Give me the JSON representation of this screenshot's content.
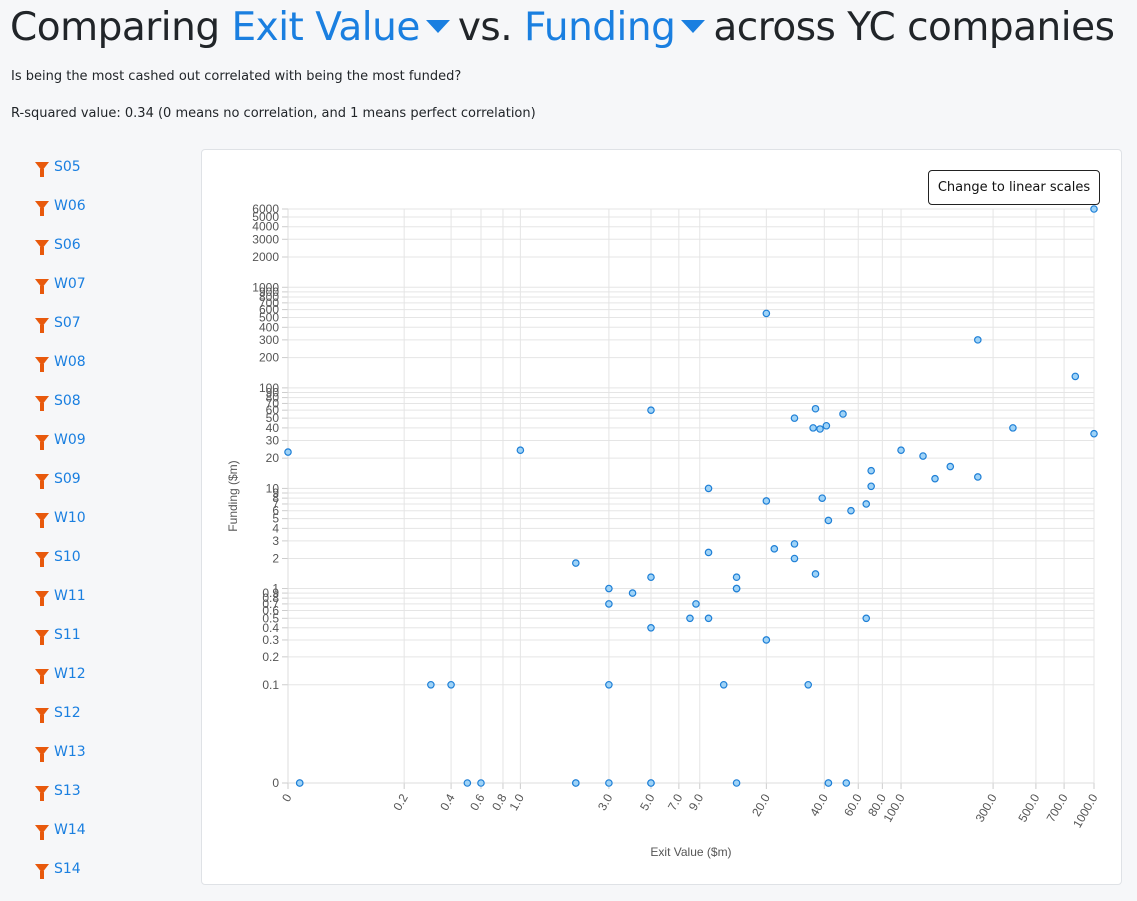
{
  "header": {
    "prefix": "Comparing",
    "metric_x": "Exit Value",
    "middle": "vs.",
    "metric_y": "Funding",
    "suffix": "across YC companies",
    "question": "Is being the most cashed out correlated with being the most funded?",
    "r_squared": "R-squared value: 0.34 (0 means no correlation, and 1 means perfect correlation)"
  },
  "batches": [
    "S05",
    "W06",
    "S06",
    "W07",
    "S07",
    "W08",
    "S08",
    "W09",
    "S09",
    "W10",
    "S10",
    "W11",
    "S11",
    "W12",
    "S12",
    "W13",
    "S13",
    "W14",
    "S14"
  ],
  "toggle_label": "Change to linear scales",
  "colors": {
    "accent": "#1a7fe0",
    "filter_icon": "#e8590c",
    "point_fill": "#9fd3f7",
    "point_stroke": "#1e7fd6"
  },
  "chart_data": {
    "type": "scatter",
    "xlabel": "Exit Value ($m)",
    "ylabel": "Funding ($m)",
    "x_scale": "log",
    "y_scale": "log",
    "xlim": [
      0,
      1000
    ],
    "ylim": [
      0,
      6000
    ],
    "grid": true,
    "x_ticks": [
      "0",
      "0.2",
      "0.4",
      "0.6",
      "0.8",
      "1.0",
      "3.0",
      "5.0",
      "7.0",
      "9.0",
      "20.0",
      "40.0",
      "60.0",
      "80.0",
      "100.0",
      "300.0",
      "500.0",
      "700.0",
      "1000.0"
    ],
    "y_ticks": [
      "0",
      "0.1",
      "0.2",
      "0.3",
      "0.4",
      "0.5",
      "0.6",
      "0.7",
      "0.8",
      "0.9",
      "1",
      "2",
      "3",
      "4",
      "5",
      "6",
      "7",
      "8",
      "9",
      "10",
      "20",
      "30",
      "40",
      "50",
      "60",
      "70",
      "80",
      "90",
      "100",
      "200",
      "300",
      "400",
      "500",
      "600",
      "700",
      "800",
      "900",
      "1000",
      "2000",
      "3000",
      "4000",
      "5000",
      "6000"
    ],
    "points": [
      {
        "x": 0,
        "y": 23
      },
      {
        "x": 0.01,
        "y": 0
      },
      {
        "x": 0.01,
        "y": 0
      },
      {
        "x": 0.3,
        "y": 0.1
      },
      {
        "x": 0.4,
        "y": 0.1
      },
      {
        "x": 0.5,
        "y": 0
      },
      {
        "x": 0.6,
        "y": 0
      },
      {
        "x": 1.0,
        "y": 24
      },
      {
        "x": 2.0,
        "y": 1.8
      },
      {
        "x": 2.0,
        "y": 0
      },
      {
        "x": 2.0,
        "y": 0
      },
      {
        "x": 3.0,
        "y": 1.0
      },
      {
        "x": 3.0,
        "y": 0.7
      },
      {
        "x": 3.0,
        "y": 0.1
      },
      {
        "x": 3.0,
        "y": 0
      },
      {
        "x": 4.0,
        "y": 0.9
      },
      {
        "x": 5.0,
        "y": 60
      },
      {
        "x": 5.0,
        "y": 1.3
      },
      {
        "x": 5.0,
        "y": 0.4
      },
      {
        "x": 5.0,
        "y": 0
      },
      {
        "x": 5.0,
        "y": 0
      },
      {
        "x": 8.0,
        "y": 0.5
      },
      {
        "x": 8.6,
        "y": 0.7
      },
      {
        "x": 10.0,
        "y": 10
      },
      {
        "x": 10.0,
        "y": 2.3
      },
      {
        "x": 10.0,
        "y": 0.5
      },
      {
        "x": 12.0,
        "y": 0.1
      },
      {
        "x": 14.0,
        "y": 1.3
      },
      {
        "x": 14.0,
        "y": 1.0
      },
      {
        "x": 14.0,
        "y": 1.0
      },
      {
        "x": 14.0,
        "y": 0
      },
      {
        "x": 20.0,
        "y": 550
      },
      {
        "x": 20.0,
        "y": 7.5
      },
      {
        "x": 20.0,
        "y": 0.3
      },
      {
        "x": 22.0,
        "y": 2.5
      },
      {
        "x": 28.0,
        "y": 50
      },
      {
        "x": 28.0,
        "y": 2.8
      },
      {
        "x": 28.0,
        "y": 2.0
      },
      {
        "x": 33.0,
        "y": 0.1
      },
      {
        "x": 36.0,
        "y": 62
      },
      {
        "x": 35.0,
        "y": 40
      },
      {
        "x": 36.0,
        "y": 1.4
      },
      {
        "x": 38.0,
        "y": 39
      },
      {
        "x": 39.0,
        "y": 8
      },
      {
        "x": 41.0,
        "y": 42
      },
      {
        "x": 42.0,
        "y": 4.8
      },
      {
        "x": 42.0,
        "y": 0
      },
      {
        "x": 42.0,
        "y": 0
      },
      {
        "x": 50.0,
        "y": 55
      },
      {
        "x": 52.0,
        "y": 0
      },
      {
        "x": 55.0,
        "y": 6
      },
      {
        "x": 66.0,
        "y": 7
      },
      {
        "x": 66.0,
        "y": 0.5
      },
      {
        "x": 70.0,
        "y": 15
      },
      {
        "x": 70.0,
        "y": 10.5
      },
      {
        "x": 100.0,
        "y": 24
      },
      {
        "x": 130.0,
        "y": 21
      },
      {
        "x": 150.0,
        "y": 12.5
      },
      {
        "x": 180.0,
        "y": 16.5
      },
      {
        "x": 250.0,
        "y": 300
      },
      {
        "x": 250.0,
        "y": 13
      },
      {
        "x": 380.0,
        "y": 40
      },
      {
        "x": 800.0,
        "y": 130
      },
      {
        "x": 1000.0,
        "y": 6000
      },
      {
        "x": 1000.0,
        "y": 35
      }
    ]
  }
}
